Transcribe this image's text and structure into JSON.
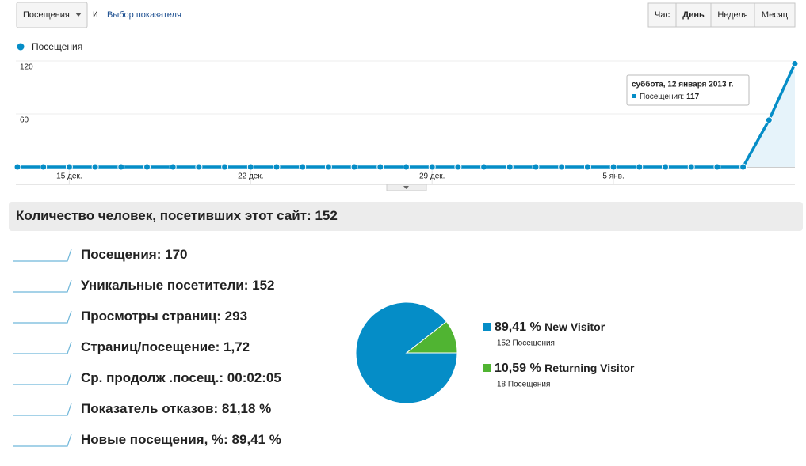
{
  "controls": {
    "metric_select": "Посещения",
    "and_text": "и",
    "compare_link": "Выбор показателя",
    "period_buttons": [
      "Час",
      "День",
      "Неделя",
      "Месяц"
    ]
  },
  "summary_header": {
    "text": "Количество человек, посетивших этот сайт:",
    "value": "152"
  },
  "metrics": [
    {
      "label": "Посещения:",
      "value": "170"
    },
    {
      "label": "Уникальные посетители:",
      "value": "152"
    },
    {
      "label": "Просмотры страниц:",
      "value": "293"
    },
    {
      "label": "Страниц/посещение:",
      "value": "1,72"
    },
    {
      "label": "Ср. продолж .посещ.:",
      "value": "00:02:05"
    },
    {
      "label": "Показатель отказов:",
      "value": "81,18 %"
    },
    {
      "label": "Новые посещения, %:",
      "value": "89,41 %"
    }
  ],
  "chart_data": [
    {
      "type": "line",
      "categories": [
        null,
        null,
        "15 дек.",
        null,
        null,
        null,
        null,
        null,
        null,
        "22 дек.",
        null,
        null,
        null,
        null,
        null,
        null,
        "29 дек.",
        null,
        null,
        null,
        null,
        null,
        null,
        "5 янв.",
        null,
        null,
        null,
        null,
        null,
        null,
        null
      ],
      "series": [
        {
          "name": "Посещения",
          "color": "#058dc7",
          "values": [
            0,
            0,
            0,
            0,
            0,
            0,
            0,
            0,
            0,
            0,
            0,
            0,
            0,
            0,
            0,
            0,
            0,
            0,
            0,
            0,
            0,
            0,
            0,
            0,
            0,
            0,
            0,
            0,
            0,
            53,
            117
          ]
        }
      ],
      "ylim": [
        0,
        120
      ],
      "yticks": [
        60,
        120
      ],
      "grid": true,
      "tooltip": {
        "title": "суббота, 12 января 2013 г.",
        "label": "Посещения:",
        "value": 117
      }
    },
    {
      "type": "pie",
      "categories": [
        "New Visitor",
        "Returning Visitor"
      ],
      "values": [
        89.41,
        10.59
      ],
      "value_labels": [
        "89,41 %",
        "10,59 %"
      ],
      "sublabels": [
        "152 Посещения",
        "18 Посещения"
      ],
      "colors": [
        "#058dc7",
        "#50b432"
      ]
    }
  ]
}
